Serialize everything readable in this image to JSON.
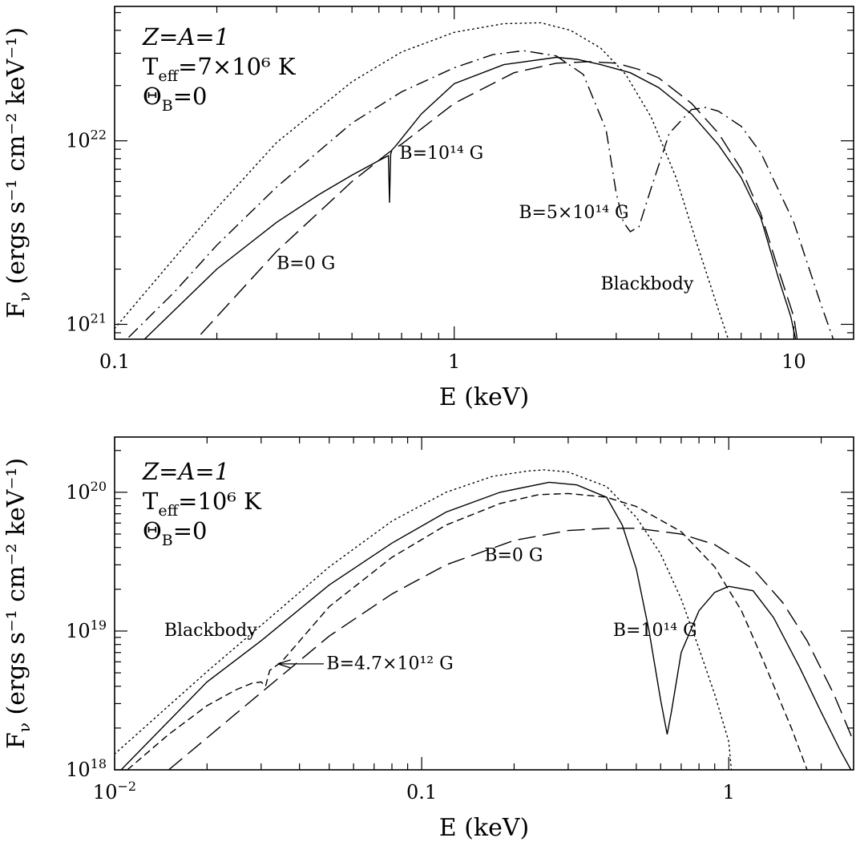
{
  "chart_data": [
    {
      "type": "line",
      "xlabel": "E (keV)",
      "ylabel": "Fν (ergs s⁻¹ cm⁻² keV⁻¹)",
      "ylabel_main": "F",
      "ylabel_sub": "ν",
      "ylabel_rest": " (ergs s⁻¹ cm⁻² keV⁻¹)",
      "xscale": "log",
      "yscale": "log",
      "xlim": [
        0.1,
        15
      ],
      "ylim": [
        8.3e+20,
        5.4e+22
      ],
      "xticks": [
        {
          "v": 0.1,
          "label": "0.1"
        },
        {
          "v": 1,
          "label": "1"
        },
        {
          "v": 10,
          "label": "10"
        }
      ],
      "yticks": [
        {
          "v": 1e+21,
          "base": "10",
          "exp": "21"
        },
        {
          "v": 1e+22,
          "base": "10",
          "exp": "22"
        }
      ],
      "params": {
        "line1": "Z=A=1",
        "line2_main": "T",
        "line2_sub": "eff",
        "line2_rest": "=7×10⁶ K",
        "line3_main": "Θ",
        "line3_sub": "B",
        "line3_rest": "=0"
      },
      "annotations": [
        {
          "text": "B=10¹⁴ G",
          "x": 0.69,
          "y": 8e+21
        },
        {
          "text": "B=5×10¹⁴ G",
          "x": 1.55,
          "y": 3.8e+21
        },
        {
          "text": "B=0 G",
          "x": 0.3,
          "y": 2e+21
        },
        {
          "text": "Blackbody",
          "x": 2.7,
          "y": 1.55e+21
        }
      ],
      "series": [
        {
          "style": "dotted",
          "x": [
            0.1,
            0.15,
            0.2,
            0.3,
            0.5,
            0.7,
            1.0,
            1.4,
            1.8,
            2.2,
            2.7,
            3.2,
            3.8,
            4.5,
            5.2,
            6.0,
            6.8
          ],
          "y": [
            9.5e+20,
            2.3e+21,
            4.3e+21,
            9.8e+21,
            2.1e+22,
            3.05e+22,
            3.9e+22,
            4.35e+22,
            4.4e+22,
            4e+22,
            3.2e+22,
            2.3e+22,
            1.35e+22,
            6.3e+21,
            2.7e+21,
            1.2e+21,
            6e+20
          ]
        },
        {
          "style": "dashdot",
          "x": [
            0.11,
            0.15,
            0.2,
            0.3,
            0.5,
            0.7,
            1.0,
            1.3,
            1.6,
            2.0,
            2.4,
            2.8,
            3.0,
            3.15,
            3.3,
            3.5,
            3.8,
            4.3,
            5.0,
            5.5,
            6.0,
            7.0,
            8.0,
            10.0,
            12.0,
            13.5
          ],
          "y": [
            8.5e+20,
            1.5e+21,
            2.7e+21,
            5.6e+21,
            1.25e+22,
            1.85e+22,
            2.5e+22,
            2.95e+22,
            3.1e+22,
            2.9e+22,
            2.3e+22,
            1.15e+22,
            5.2e+21,
            3.6e+21,
            3.2e+21,
            3.4e+21,
            5.5e+21,
            1.1e+22,
            1.48e+22,
            1.52e+22,
            1.45e+22,
            1.2e+22,
            8.6e+21,
            3.6e+21,
            1.3e+21,
            7e+20
          ]
        },
        {
          "style": "solid",
          "x": [
            0.12,
            0.2,
            0.3,
            0.4,
            0.5,
            0.6,
            0.64,
            0.645,
            0.65,
            0.655,
            0.67,
            0.8,
            1.0,
            1.4,
            2.0,
            2.3,
            2.7,
            3.3,
            4.0,
            5.0,
            6.0,
            7.0,
            8.0,
            9.0,
            9.8,
            10.5
          ],
          "y": [
            8e+20,
            2e+21,
            3.6e+21,
            5.1e+21,
            6.5e+21,
            7.8e+21,
            8.3e+21,
            4.6e+21,
            8.4e+21,
            8.9e+21,
            9.3e+21,
            1.4e+22,
            2.05e+22,
            2.6e+22,
            2.85e+22,
            2.78e+22,
            2.6e+22,
            2.35e+22,
            1.95e+22,
            1.4e+22,
            9.5e+21,
            6.3e+21,
            3.8e+21,
            1.8e+21,
            1.1e+21,
            6e+20
          ]
        },
        {
          "style": "longdash",
          "x": [
            0.16,
            0.2,
            0.3,
            0.5,
            0.64,
            0.7,
            1.0,
            1.5,
            2.0,
            2.5,
            3.0,
            3.5,
            4.0,
            5.0,
            6.0,
            7.0,
            8.0,
            9.0,
            10.0,
            10.5
          ],
          "y": [
            7e+20,
            1.1e+21,
            2.5e+21,
            6e+21,
            8.6e+21,
            9.6e+21,
            1.6e+22,
            2.35e+22,
            2.65e+22,
            2.7e+22,
            2.65e+22,
            2.45e+22,
            2.2e+22,
            1.6e+22,
            1.1e+22,
            7e+21,
            4e+21,
            2e+21,
            1.1e+21,
            6e+20
          ]
        }
      ]
    },
    {
      "type": "line",
      "xlabel": "E (keV)",
      "ylabel": "Fν (ergs s⁻¹ cm⁻² keV⁻¹)",
      "ylabel_main": "F",
      "ylabel_sub": "ν",
      "ylabel_rest": " (ergs s⁻¹ cm⁻² keV⁻¹)",
      "xscale": "log",
      "yscale": "log",
      "xlim": [
        0.01,
        2.55
      ],
      "ylim": [
        1e+18,
        2.5e+20
      ],
      "xticks": [
        {
          "v": 0.01,
          "base": "10",
          "exp": "−2"
        },
        {
          "v": 0.1,
          "label": "0.1"
        },
        {
          "v": 1,
          "label": "1"
        }
      ],
      "yticks": [
        {
          "v": 1e+18,
          "base": "10",
          "exp": "18"
        },
        {
          "v": 1e+19,
          "base": "10",
          "exp": "19"
        },
        {
          "v": 1e+20,
          "base": "10",
          "exp": "20"
        }
      ],
      "params": {
        "line1": "Z=A=1",
        "line2_main": "T",
        "line2_sub": "eff",
        "line2_rest": "=10⁶ K",
        "line3_main": "Θ",
        "line3_sub": "B",
        "line3_rest": "=0"
      },
      "annotations": [
        {
          "text": "B=0 G",
          "x": 0.16,
          "y": 3.2e+19
        },
        {
          "text": "B=10¹⁴ G",
          "x": 0.42,
          "y": 9.2e+18
        },
        {
          "text": "Blackbody",
          "x": 0.0145,
          "y": 9.2e+18
        },
        {
          "text": "B=4.7×10¹² G",
          "x": 0.049,
          "y": 5.3e+18
        }
      ],
      "arrow": {
        "x1": 0.048,
        "y1": 5.8e+18,
        "x2": 0.034,
        "y2": 5.8e+18
      },
      "series": [
        {
          "style": "dotted",
          "x": [
            0.01,
            0.02,
            0.03,
            0.05,
            0.08,
            0.12,
            0.17,
            0.22,
            0.25,
            0.3,
            0.4,
            0.5,
            0.6,
            0.7,
            0.8,
            0.9,
            1.0,
            1.02
          ],
          "y": [
            1.3e+18,
            5.1e+18,
            1.1e+19,
            2.9e+19,
            6.2e+19,
            1e+20,
            1.3e+20,
            1.42e+20,
            1.45e+20,
            1.4e+20,
            1.1e+20,
            6.6e+19,
            3.6e+19,
            1.7e+19,
            7.5e+18,
            3.5e+18,
            1.6e+18,
            1e+18
          ]
        },
        {
          "style": "shortdash",
          "x": [
            0.011,
            0.015,
            0.02,
            0.025,
            0.028,
            0.03,
            0.031,
            0.032,
            0.035,
            0.05,
            0.08,
            0.12,
            0.18,
            0.24,
            0.3,
            0.4,
            0.5,
            0.7,
            0.9,
            1.1,
            1.3,
            1.6,
            1.8
          ],
          "y": [
            1e+18,
            1.8e+18,
            2.9e+18,
            3.8e+18,
            4.2e+18,
            4.3e+18,
            4e+18,
            5.2e+18,
            6e+18,
            1.5e+19,
            3.4e+19,
            5.8e+19,
            8.3e+19,
            9.6e+19,
            9.8e+19,
            9.2e+19,
            7.9e+19,
            5.2e+19,
            2.9e+19,
            1.4e+19,
            6e+18,
            2e+18,
            1e+18
          ]
        },
        {
          "style": "solid",
          "x": [
            0.0105,
            0.02,
            0.03,
            0.05,
            0.08,
            0.12,
            0.18,
            0.26,
            0.32,
            0.4,
            0.45,
            0.5,
            0.55,
            0.6,
            0.63,
            0.65,
            0.7,
            0.8,
            0.9,
            1.0,
            1.2,
            1.4,
            1.7,
            2.0,
            2.3,
            2.5
          ],
          "y": [
            1e+18,
            4.3e+18,
            8.5e+18,
            2.15e+19,
            4.3e+19,
            7.2e+19,
            1e+20,
            1.18e+20,
            1.13e+20,
            9.2e+19,
            5.8e+19,
            2.8e+19,
            1e+19,
            3.2e+18,
            1.8e+18,
            2.6e+18,
            7e+18,
            1.4e+19,
            1.9e+19,
            2.1e+19,
            1.95e+19,
            1.25e+19,
            5.5e+18,
            2.6e+18,
            1.4e+18,
            1e+18
          ]
        },
        {
          "style": "longdash",
          "x": [
            0.015,
            0.02,
            0.03,
            0.05,
            0.08,
            0.12,
            0.2,
            0.3,
            0.4,
            0.5,
            0.7,
            0.9,
            1.2,
            1.5,
            1.8,
            2.2,
            2.55
          ],
          "y": [
            1e+18,
            1.7e+18,
            3.6e+18,
            9.2e+18,
            1.85e+19,
            3e+19,
            4.5e+19,
            5.3e+19,
            5.5e+19,
            5.5e+19,
            5e+19,
            4.2e+19,
            2.8e+19,
            1.6e+19,
            8.5e+18,
            3.5e+18,
            1.6e+18
          ]
        }
      ]
    }
  ]
}
